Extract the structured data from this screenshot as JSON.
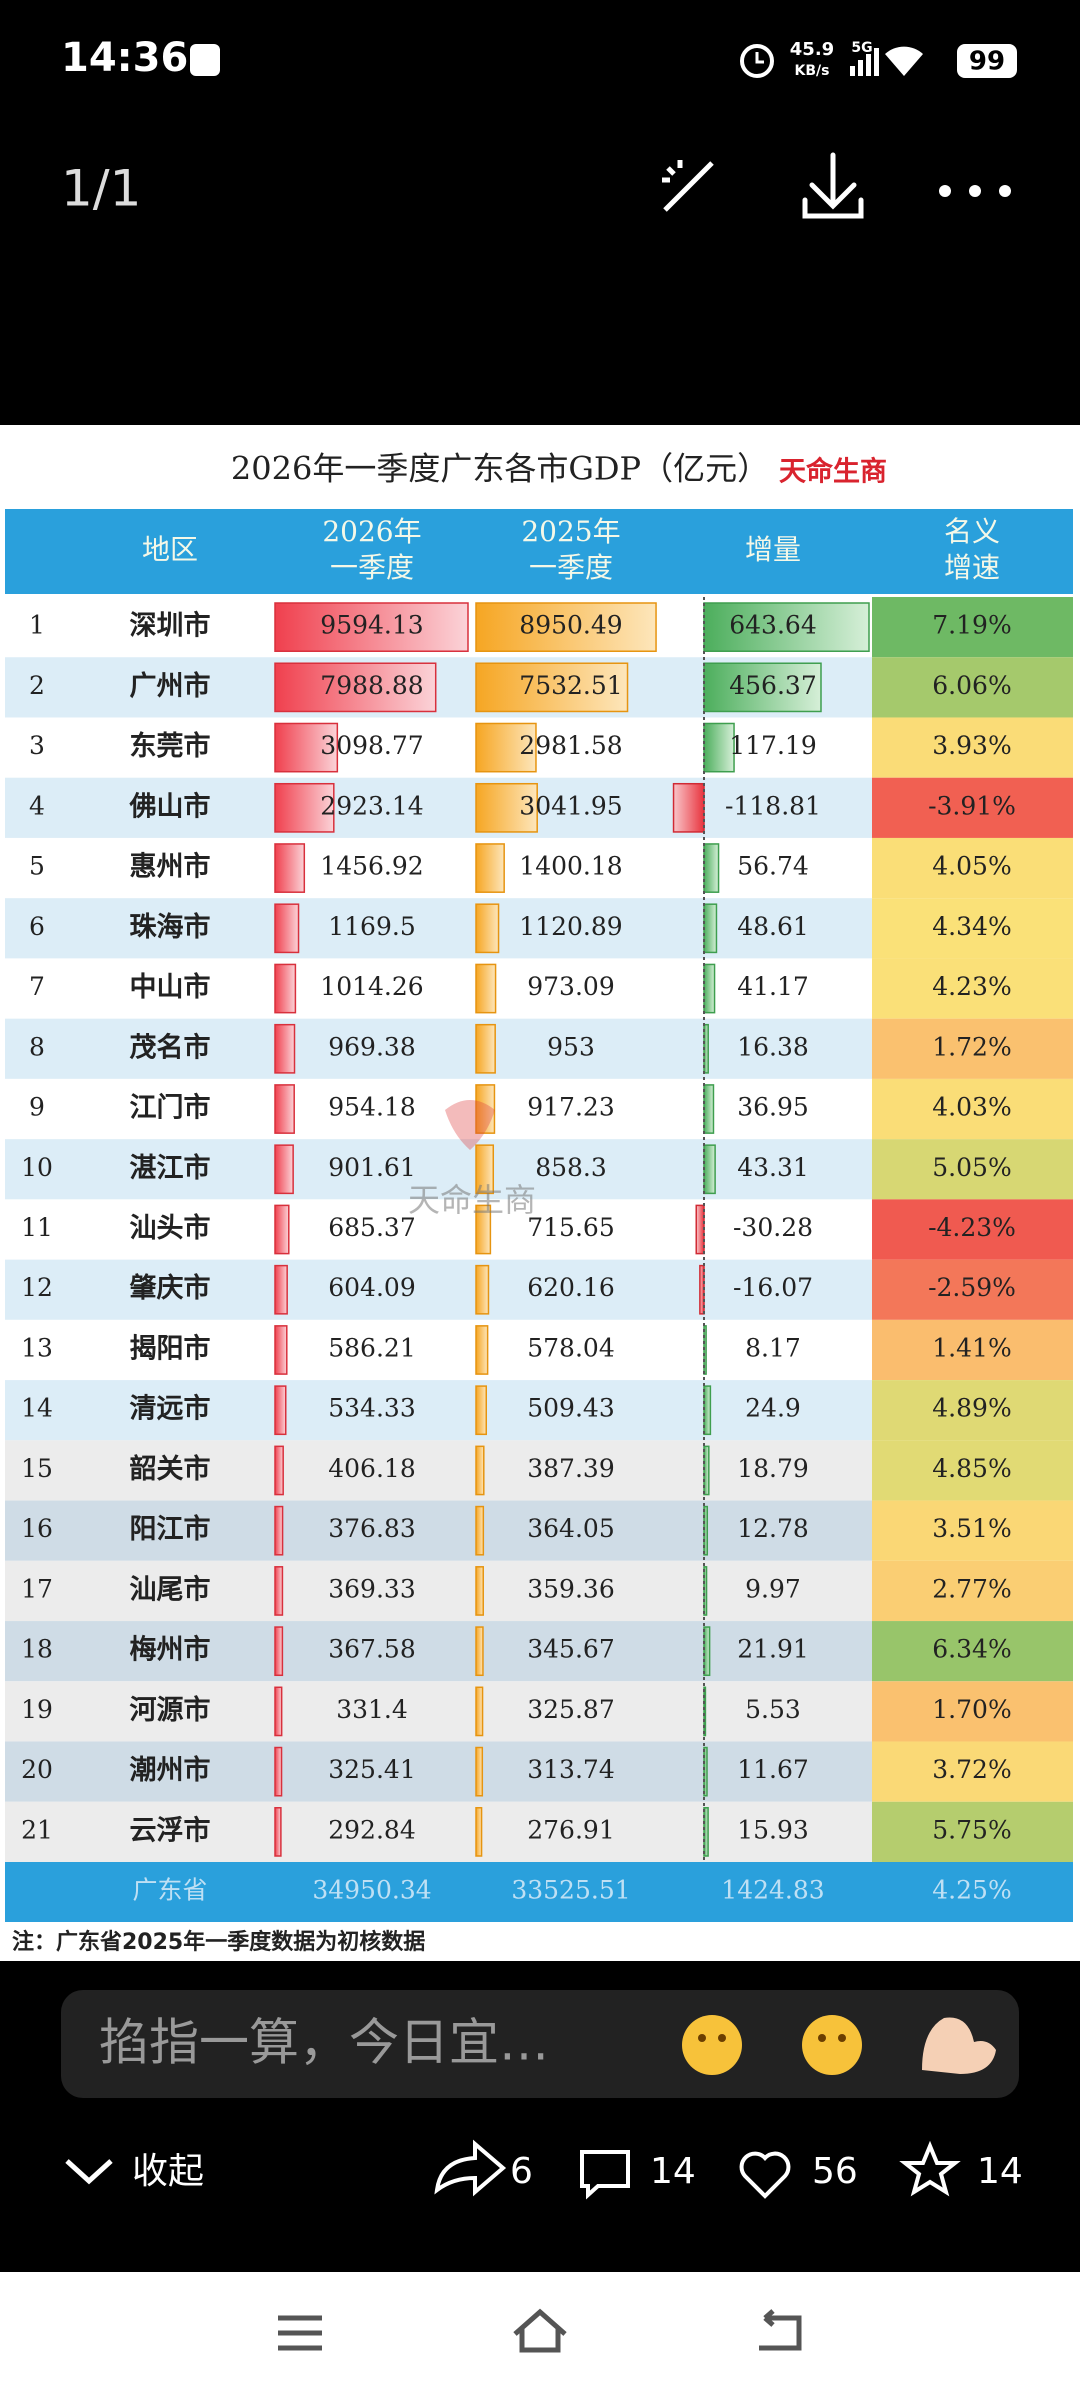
{
  "status_bar": {
    "time": "14:36",
    "speed": "45.9",
    "speed_unit": "KB/s",
    "network": "5G",
    "battery": "99"
  },
  "top_bar": {
    "counter": "1/1"
  },
  "table": {
    "title": "2026年一季度广东各市GDP（亿元）",
    "brand": "天命生商",
    "watermark": "天命生商",
    "headers": [
      [
        "地区"
      ],
      [
        "2026年",
        "一季度"
      ],
      [
        "2025年",
        "一季度"
      ],
      [
        "增量"
      ],
      [
        "名义",
        "增速"
      ]
    ],
    "rows": [
      {
        "rank": 1,
        "city": "深圳市",
        "gdp2026": 9594.13,
        "gdp2025": 8950.49,
        "increase": 643.64,
        "rate": 7.19,
        "rate_label": "7.19%"
      },
      {
        "rank": 2,
        "city": "广州市",
        "gdp2026": 7988.88,
        "gdp2025": 7532.51,
        "increase": 456.37,
        "rate": 6.06,
        "rate_label": "6.06%"
      },
      {
        "rank": 3,
        "city": "东莞市",
        "gdp2026": 3098.77,
        "gdp2025": 2981.58,
        "increase": 117.19,
        "rate": 3.93,
        "rate_label": "3.93%"
      },
      {
        "rank": 4,
        "city": "佛山市",
        "gdp2026": 2923.14,
        "gdp2025": 3041.95,
        "increase": -118.81,
        "rate": -3.91,
        "rate_label": "-3.91%"
      },
      {
        "rank": 5,
        "city": "惠州市",
        "gdp2026": 1456.92,
        "gdp2025": 1400.18,
        "increase": 56.74,
        "rate": 4.05,
        "rate_label": "4.05%"
      },
      {
        "rank": 6,
        "city": "珠海市",
        "gdp2026": 1169.5,
        "gdp2025": 1120.89,
        "increase": 48.61,
        "rate": 4.34,
        "rate_label": "4.34%"
      },
      {
        "rank": 7,
        "city": "中山市",
        "gdp2026": 1014.26,
        "gdp2025": 973.09,
        "increase": 41.17,
        "rate": 4.23,
        "rate_label": "4.23%"
      },
      {
        "rank": 8,
        "city": "茂名市",
        "gdp2026": 969.38,
        "gdp2025": 953,
        "increase": 16.38,
        "rate": 1.72,
        "rate_label": "1.72%"
      },
      {
        "rank": 9,
        "city": "江门市",
        "gdp2026": 954.18,
        "gdp2025": 917.23,
        "increase": 36.95,
        "rate": 4.03,
        "rate_label": "4.03%"
      },
      {
        "rank": 10,
        "city": "湛江市",
        "gdp2026": 901.61,
        "gdp2025": 858.3,
        "increase": 43.31,
        "rate": 5.05,
        "rate_label": "5.05%"
      },
      {
        "rank": 11,
        "city": "汕头市",
        "gdp2026": 685.37,
        "gdp2025": 715.65,
        "increase": -30.28,
        "rate": -4.23,
        "rate_label": "-4.23%"
      },
      {
        "rank": 12,
        "city": "肇庆市",
        "gdp2026": 604.09,
        "gdp2025": 620.16,
        "increase": -16.07,
        "rate": -2.59,
        "rate_label": "-2.59%"
      },
      {
        "rank": 13,
        "city": "揭阳市",
        "gdp2026": 586.21,
        "gdp2025": 578.04,
        "increase": 8.17,
        "rate": 1.41,
        "rate_label": "1.41%"
      },
      {
        "rank": 14,
        "city": "清远市",
        "gdp2026": 534.33,
        "gdp2025": 509.43,
        "increase": 24.9,
        "rate": 4.89,
        "rate_label": "4.89%"
      },
      {
        "rank": 15,
        "city": "韶关市",
        "gdp2026": 406.18,
        "gdp2025": 387.39,
        "increase": 18.79,
        "rate": 4.85,
        "rate_label": "4.85%"
      },
      {
        "rank": 16,
        "city": "阳江市",
        "gdp2026": 376.83,
        "gdp2025": 364.05,
        "increase": 12.78,
        "rate": 3.51,
        "rate_label": "3.51%"
      },
      {
        "rank": 17,
        "city": "汕尾市",
        "gdp2026": 369.33,
        "gdp2025": 359.36,
        "increase": 9.97,
        "rate": 2.77,
        "rate_label": "2.77%"
      },
      {
        "rank": 18,
        "city": "梅州市",
        "gdp2026": 367.58,
        "gdp2025": 345.67,
        "increase": 21.91,
        "rate": 6.34,
        "rate_label": "6.34%"
      },
      {
        "rank": 19,
        "city": "河源市",
        "gdp2026": 331.4,
        "gdp2025": 325.87,
        "increase": 5.53,
        "rate": 1.7,
        "rate_label": "1.70%"
      },
      {
        "rank": 20,
        "city": "潮州市",
        "gdp2026": 325.41,
        "gdp2025": 313.74,
        "increase": 11.67,
        "rate": 3.72,
        "rate_label": "3.72%"
      },
      {
        "rank": 21,
        "city": "云浮市",
        "gdp2026": 292.84,
        "gdp2025": 276.91,
        "increase": 15.93,
        "rate": 5.75,
        "rate_label": "5.75%"
      }
    ],
    "total": {
      "city": "广东省",
      "gdp2026": 34950.34,
      "gdp2025": 33525.51,
      "increase": 1424.83,
      "rate_label": "4.25%"
    },
    "note": "注：广东省2025年一季度数据为初核数据"
  },
  "comment_box": {
    "placeholder": "掐指一算，今日宜…"
  },
  "actions": {
    "collapse": "收起",
    "shares": 6,
    "comments": 14,
    "likes": 56,
    "favorites": 14
  }
}
